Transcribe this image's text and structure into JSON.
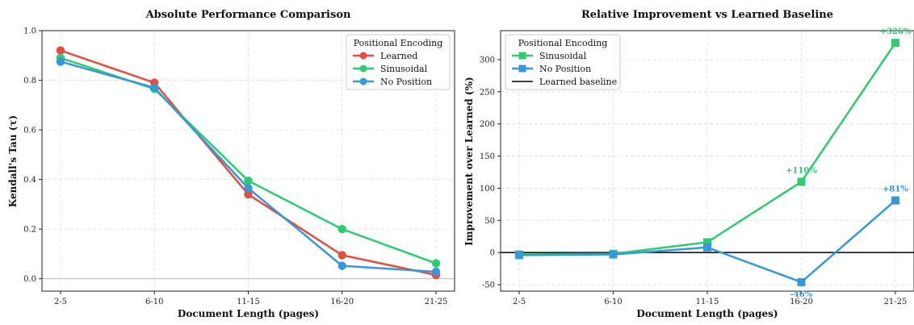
{
  "chart_data": [
    {
      "type": "line",
      "title": "Absolute Performance Comparison",
      "xlabel": "Document Length (pages)",
      "ylabel": "Kendall's Tau (τ)",
      "categories": [
        "2-5",
        "6-10",
        "11-15",
        "16-20",
        "21-25"
      ],
      "ylim": [
        -0.05,
        1.0
      ],
      "yticks": [
        0.0,
        0.2,
        0.4,
        0.6,
        0.8,
        1.0
      ],
      "grid": true,
      "legend": {
        "title": "Positional Encoding",
        "placement": "top-right"
      },
      "series": [
        {
          "name": "Learned",
          "color": "#e74c3c",
          "marker": "circle",
          "values": [
            0.92,
            0.79,
            0.34,
            0.095,
            0.015
          ]
        },
        {
          "name": "Sinusoidal",
          "color": "#2ecc71",
          "marker": "circle",
          "values": [
            0.89,
            0.765,
            0.395,
            0.2,
            0.062
          ]
        },
        {
          "name": "No Position",
          "color": "#3498db",
          "marker": "circle",
          "values": [
            0.875,
            0.77,
            0.365,
            0.052,
            0.028
          ]
        }
      ]
    },
    {
      "type": "line",
      "title": "Relative Improvement vs Learned Baseline",
      "xlabel": "Document Length (pages)",
      "ylabel": "Improvement over Learned (%)",
      "categories": [
        "2-5",
        "6-10",
        "11-15",
        "16-20",
        "21-25"
      ],
      "ylim": [
        -60,
        345
      ],
      "yticks": [
        -50,
        0,
        50,
        100,
        150,
        200,
        250,
        300
      ],
      "grid": true,
      "legend": {
        "title": "Positional Encoding",
        "placement": "top-left",
        "baseline_label": "Learned baseline"
      },
      "series": [
        {
          "name": "Sinusoidal",
          "color": "#2ecc71",
          "marker": "square",
          "values": [
            -3,
            -2,
            16,
            110,
            326
          ]
        },
        {
          "name": "No Position",
          "color": "#3498db",
          "marker": "square",
          "values": [
            -4,
            -3,
            8,
            -46,
            81
          ]
        }
      ],
      "annotations": [
        {
          "series": 0,
          "index": 3,
          "text": "+110%"
        },
        {
          "series": 0,
          "index": 4,
          "text": "+326%"
        },
        {
          "series": 1,
          "index": 3,
          "text": "-46%"
        },
        {
          "series": 1,
          "index": 4,
          "text": "+81%"
        }
      ]
    }
  ]
}
